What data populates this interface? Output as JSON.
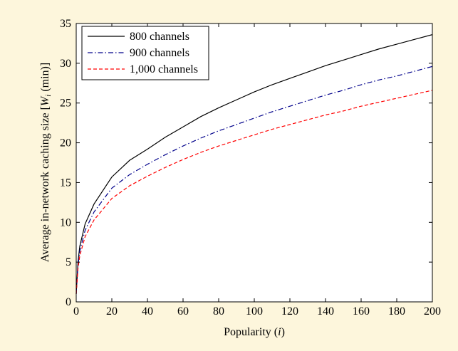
{
  "chart_data": {
    "type": "line",
    "title": "",
    "xlabel": "Popularity (i)",
    "ylabel": "Average in-network caching size [Wi (min)]",
    "xlabel_parts": {
      "before": "Popularity (",
      "italic": "i",
      "after": ")"
    },
    "ylabel_parts": {
      "before": "Average in-network caching size [",
      "italic": "W",
      "sub": "i",
      "after": " (min)]"
    },
    "xlim": [
      0,
      200
    ],
    "ylim": [
      0,
      35
    ],
    "xticks": [
      0,
      20,
      40,
      60,
      80,
      100,
      120,
      140,
      160,
      180,
      200
    ],
    "yticks": [
      0,
      5,
      10,
      15,
      20,
      25,
      30,
      35
    ],
    "grid": false,
    "legend_position": "top-left",
    "x": [
      0,
      1,
      2,
      5,
      10,
      20,
      30,
      40,
      50,
      60,
      70,
      80,
      90,
      100,
      110,
      120,
      130,
      140,
      150,
      160,
      170,
      180,
      190,
      200
    ],
    "series": [
      {
        "name": "800 channels",
        "color": "#000000",
        "dash": "solid",
        "values": [
          1.0,
          5.0,
          7.0,
          9.8,
          12.3,
          15.7,
          17.8,
          19.2,
          20.7,
          22.0,
          23.3,
          24.4,
          25.4,
          26.4,
          27.3,
          28.1,
          28.9,
          29.7,
          30.4,
          31.1,
          31.8,
          32.4,
          33.0,
          33.6
        ]
      },
      {
        "name": "900 channels",
        "color": "#00008b",
        "dash": "dashdot",
        "values": [
          1.0,
          4.6,
          6.4,
          9.0,
          11.3,
          14.3,
          16.0,
          17.3,
          18.5,
          19.6,
          20.6,
          21.5,
          22.3,
          23.1,
          23.9,
          24.6,
          25.3,
          26.0,
          26.6,
          27.3,
          27.9,
          28.4,
          29.0,
          29.6
        ]
      },
      {
        "name": "1,000 channels",
        "color": "#ff0000",
        "dash": "dashed",
        "values": [
          1.0,
          4.2,
          5.8,
          8.2,
          10.3,
          13.0,
          14.6,
          15.8,
          16.9,
          17.9,
          18.8,
          19.6,
          20.3,
          21.0,
          21.7,
          22.3,
          22.9,
          23.5,
          24.0,
          24.6,
          25.1,
          25.6,
          26.1,
          26.6
        ]
      }
    ]
  }
}
